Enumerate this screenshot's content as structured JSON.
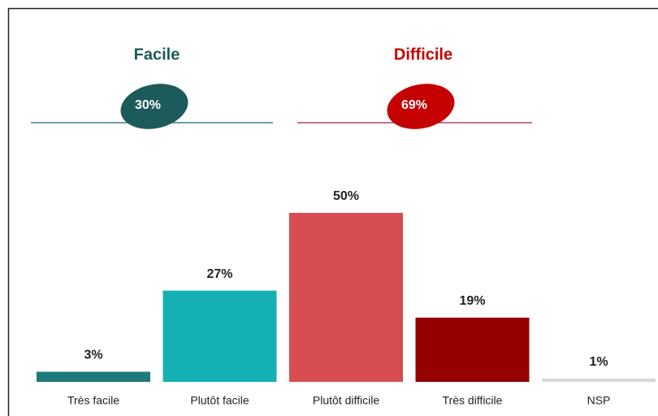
{
  "chart_data": {
    "type": "bar",
    "categories": [
      "Très facile",
      "Plutôt facile",
      "Plutôt difficile",
      "Très difficile",
      "NSP"
    ],
    "values": [
      3,
      27,
      50,
      19,
      1
    ],
    "value_labels": [
      "3%",
      "27%",
      "50%",
      "19%",
      "1%"
    ],
    "colors": [
      "#1f7a7b",
      "#15b0b4",
      "#d84e50",
      "#950000",
      "#d9d9d9"
    ],
    "groups": [
      {
        "name": "Facile",
        "value": 30,
        "value_label": "30%",
        "color": "#1d5a5c"
      },
      {
        "name": "Difficile",
        "value": 69,
        "value_label": "69%",
        "color": "#c40000"
      }
    ]
  }
}
